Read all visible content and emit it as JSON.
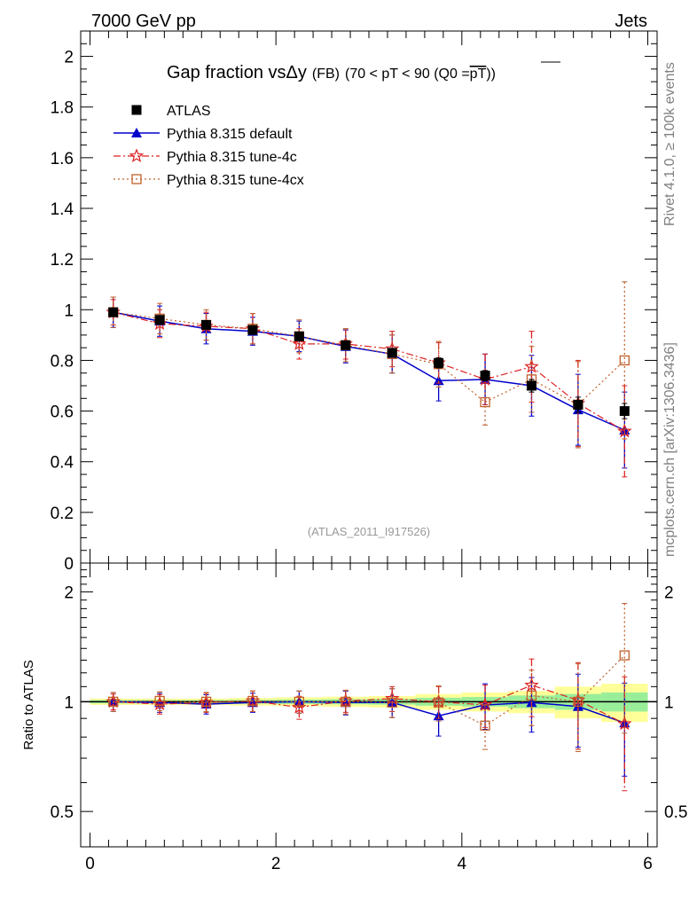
{
  "header": {
    "left": "7000 GeV pp",
    "right": "Jets"
  },
  "side_labels": {
    "rivet": "Rivet 4.1.0, ≥ 100k events",
    "mcplots": "mcplots.cern.ch [arXiv:1306.3436]"
  },
  "chart_data": [
    {
      "type": "line",
      "panel": "main",
      "title": "Gap fraction vsΔy (FB) (70 < pT <  90 (Q0 =pT))",
      "title_parts": {
        "main": "Gap fraction vs",
        "delta": "Δy",
        "fb": "(FB)",
        "range": "(70 < pT <  90 (Q0 =",
        "pt": "pT",
        "close": "))"
      },
      "watermark": "(ATLAS_2011_I917526)",
      "xlim": [
        -0.1,
        6.1
      ],
      "ylim": [
        0,
        2.1
      ],
      "yticks": [
        0,
        0.2,
        0.4,
        0.6,
        0.8,
        1,
        1.2,
        1.4,
        1.6,
        1.8,
        2
      ],
      "ytick_labels": [
        "0",
        "0.2",
        "0.4",
        "0.6",
        "0.8",
        "1",
        "1.2",
        "1.4",
        "1.6",
        "1.8",
        "2"
      ],
      "x": [
        0.25,
        0.75,
        1.25,
        1.75,
        2.25,
        2.75,
        3.25,
        3.75,
        4.25,
        4.75,
        5.25,
        5.75
      ],
      "series": [
        {
          "name": "ATLAS",
          "color": "#000000",
          "marker": "square",
          "values": [
            0.99,
            0.96,
            0.94,
            0.92,
            0.895,
            0.86,
            0.83,
            0.79,
            0.74,
            0.7,
            0.625,
            0.6
          ],
          "err": [
            0.01,
            0.01,
            0.01,
            0.01,
            0.012,
            0.012,
            0.015,
            0.02,
            0.02,
            0.025,
            0.03,
            0.03
          ]
        },
        {
          "name": "Pythia 8.315 default",
          "color": "#0000cc",
          "marker": "triangle",
          "values": [
            0.99,
            0.955,
            0.925,
            0.915,
            0.895,
            0.855,
            0.825,
            0.72,
            0.725,
            0.7,
            0.605,
            0.525
          ],
          "err": [
            0.06,
            0.06,
            0.06,
            0.055,
            0.06,
            0.065,
            0.075,
            0.08,
            0.1,
            0.12,
            0.14,
            0.15
          ]
        },
        {
          "name": "Pythia 8.315 tune-4c",
          "color": "#dd2222",
          "marker": "star",
          "values": [
            0.99,
            0.945,
            0.935,
            0.925,
            0.865,
            0.865,
            0.845,
            0.79,
            0.725,
            0.775,
            0.63,
            0.52
          ],
          "err": [
            0.05,
            0.055,
            0.055,
            0.06,
            0.06,
            0.06,
            0.07,
            0.08,
            0.1,
            0.14,
            0.17,
            0.18
          ]
        },
        {
          "name": "Pythia 8.315 tune-4cx",
          "color": "#c0602a",
          "marker": "open-square",
          "values": [
            0.99,
            0.965,
            0.94,
            0.925,
            0.895,
            0.86,
            0.825,
            0.785,
            0.635,
            0.725,
            0.625,
            0.8
          ],
          "err": [
            0.06,
            0.06,
            0.06,
            0.06,
            0.065,
            0.065,
            0.075,
            0.09,
            0.09,
            0.13,
            0.17,
            0.31
          ]
        }
      ]
    },
    {
      "type": "line",
      "panel": "ratio",
      "ylabel": "Ratio to ATLAS",
      "xlim": [
        -0.1,
        6.1
      ],
      "ylim": [
        0.4,
        2.4
      ],
      "yscale": "log",
      "yticks": [
        0.5,
        1,
        2
      ],
      "ytick_labels": [
        "0.5",
        "1",
        "2"
      ],
      "xticks": [
        0,
        2,
        4,
        6
      ],
      "xtick_labels": [
        "0",
        "2",
        "4",
        "6"
      ],
      "x": [
        0.25,
        0.75,
        1.25,
        1.75,
        2.25,
        2.75,
        3.25,
        3.75,
        4.25,
        4.75,
        5.25,
        5.75
      ],
      "bands": {
        "green": [
          0.01,
          0.01,
          0.01,
          0.012,
          0.014,
          0.016,
          0.018,
          0.025,
          0.03,
          0.04,
          0.05,
          0.06
        ],
        "yellow": [
          0.02,
          0.02,
          0.02,
          0.024,
          0.028,
          0.032,
          0.036,
          0.05,
          0.06,
          0.07,
          0.1,
          0.12
        ]
      },
      "series": [
        {
          "name": "Pythia 8.315 default",
          "color": "#0000cc",
          "marker": "triangle",
          "values": [
            1.0,
            0.995,
            0.985,
            0.995,
            1.0,
            0.995,
            0.995,
            0.915,
            0.98,
            0.995,
            0.97,
            0.875
          ],
          "err": [
            0.06,
            0.06,
            0.06,
            0.06,
            0.07,
            0.075,
            0.09,
            0.11,
            0.14,
            0.17,
            0.22,
            0.25
          ]
        },
        {
          "name": "Pythia 8.315 tune-4c",
          "color": "#dd2222",
          "marker": "star",
          "values": [
            1.0,
            0.985,
            0.995,
            1.005,
            0.965,
            1.005,
            1.02,
            1.0,
            0.98,
            1.11,
            1.01,
            0.87
          ],
          "err": [
            0.05,
            0.06,
            0.06,
            0.065,
            0.07,
            0.07,
            0.08,
            0.1,
            0.13,
            0.2,
            0.27,
            0.3
          ]
        },
        {
          "name": "Pythia 8.315 tune-4cx",
          "color": "#c0602a",
          "marker": "open-square",
          "values": [
            1.0,
            1.005,
            1.0,
            1.005,
            1.0,
            1.0,
            0.995,
            0.995,
            0.86,
            1.04,
            1.0,
            1.34
          ],
          "err": [
            0.06,
            0.06,
            0.06,
            0.065,
            0.07,
            0.075,
            0.09,
            0.11,
            0.12,
            0.18,
            0.27,
            0.52
          ]
        }
      ]
    }
  ]
}
